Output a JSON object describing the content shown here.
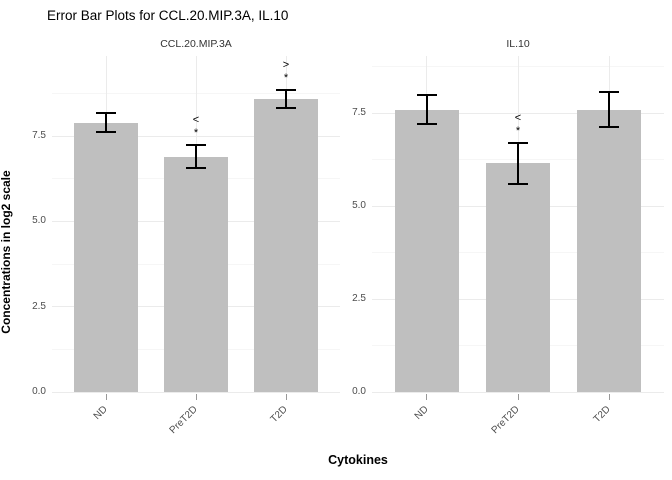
{
  "title": "Error Bar Plots for CCL.20.MIP.3A, IL.10",
  "ylabel": "Concentrations in log2 scale",
  "xlabel": "Cytokines",
  "colors": {
    "background": "#ffffff",
    "bar_fill": "#bfbfbf",
    "error_bar": "#000000",
    "grid_major": "#ebebeb",
    "grid_minor": "#f6f6f6",
    "axis_text": "#4d4d4d",
    "panel_title_text": "#333333",
    "tick_mark": "#999999",
    "annotation_text": "#000000"
  },
  "chart_data": [
    {
      "type": "bar",
      "panel_title": "CCL.20.MIP.3A",
      "categories": [
        "ND",
        "PreT2D",
        "T2D"
      ],
      "values": [
        7.9,
        6.9,
        8.6
      ],
      "errors": [
        0.27,
        0.33,
        0.26
      ],
      "annotations": [
        {
          "category": "PreT2D",
          "lines": [
            "<",
            "*"
          ]
        },
        {
          "category": "T2D",
          "lines": [
            ">",
            "*"
          ]
        }
      ],
      "yticks": [
        0.0,
        2.5,
        5.0,
        7.5
      ],
      "ytick_labels": [
        "0.0",
        "2.5",
        "5.0",
        "7.5"
      ],
      "minor_ticks": [
        1.25,
        3.75,
        6.25,
        8.75
      ],
      "ylim": [
        0,
        9.85
      ],
      "grid": true,
      "legend": false
    },
    {
      "type": "bar",
      "panel_title": "IL.10",
      "categories": [
        "ND",
        "PreT2D",
        "T2D"
      ],
      "values": [
        7.6,
        6.15,
        7.6
      ],
      "errors": [
        0.4,
        0.55,
        0.48
      ],
      "annotations": [
        {
          "category": "PreT2D",
          "lines": [
            "<",
            "*"
          ]
        }
      ],
      "yticks": [
        0.0,
        2.5,
        5.0,
        7.5
      ],
      "ytick_labels": [
        "0.0",
        "2.5",
        "5.0",
        "7.5"
      ],
      "minor_ticks": [
        1.25,
        3.75,
        6.25,
        8.75
      ],
      "ylim": [
        0,
        9.04
      ],
      "grid": true,
      "legend": false
    }
  ]
}
